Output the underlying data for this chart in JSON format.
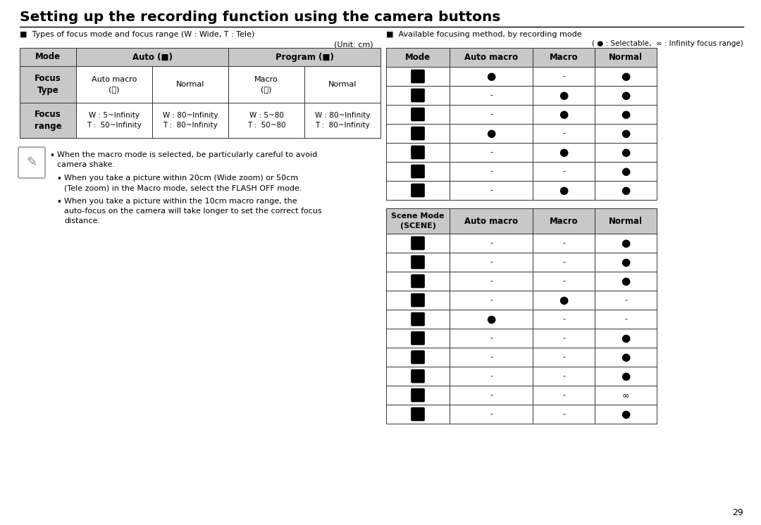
{
  "title": "Setting up the recording function using the camera buttons",
  "bg_color": "#ffffff",
  "text_color": "#000000",
  "header_bg": "#c8c8c8",
  "page_number": "29",
  "left_section_label": "■  Types of focus mode and focus range (W : Wide, T : Tele)",
  "right_section_label": "■  Available focusing method, by recording mode",
  "unit_label": "(Unit: cm)",
  "legend_label": "( ● : Selectable,  ∞ : Infinity focus range)",
  "focus_type_row": [
    "Focus\nType",
    "Auto macro\n(Ⓜ)",
    "Normal",
    "Macro\n(Ⓜ)",
    "Normal"
  ],
  "focus_range_row": [
    "Focus\nrange",
    "W : 5~Infinity\nT :  50~Infinity",
    "W : 80~Infinity\nT :  80~Infinity",
    "W : 5~80\nT :  50~80",
    "W : 80~Infinity\nT :  80~Infinity"
  ],
  "mode_table_headers": [
    "Mode",
    "Auto macro",
    "Macro",
    "Normal"
  ],
  "mode_table_data": [
    [
      "●",
      "-",
      "●"
    ],
    [
      "-",
      "●",
      "●"
    ],
    [
      "-",
      "●",
      "●"
    ],
    [
      "●",
      "-",
      "●"
    ],
    [
      "-",
      "●",
      "●"
    ],
    [
      "-",
      "-",
      "●"
    ],
    [
      "-",
      "●",
      "●"
    ]
  ],
  "scene_table_headers": [
    "Scene Mode\n(SCENE)",
    "Auto macro",
    "Macro",
    "Normal"
  ],
  "scene_table_data": [
    [
      "-",
      "-",
      "●"
    ],
    [
      "-",
      "-",
      "●"
    ],
    [
      "-",
      "-",
      "●"
    ],
    [
      "-",
      "●",
      "-"
    ],
    [
      "●",
      "-",
      "-"
    ],
    [
      "-",
      "-",
      "●"
    ],
    [
      "-",
      "-",
      "●"
    ],
    [
      "-",
      "-",
      "●"
    ],
    [
      "-",
      "-",
      "∞"
    ],
    [
      "-",
      "-",
      "●"
    ]
  ],
  "notes": [
    "When the macro mode is selected, be particularly careful to avoid\ncamera shake.",
    "When you take a picture within 20cm (Wide zoom) or 50cm\n(Tele zoom) in the Macro mode, select the FLASH OFF mode.",
    "When you take a picture within the 10cm macro range, the\nauto-focus on the camera will take longer to set the correct focus\ndistance."
  ]
}
